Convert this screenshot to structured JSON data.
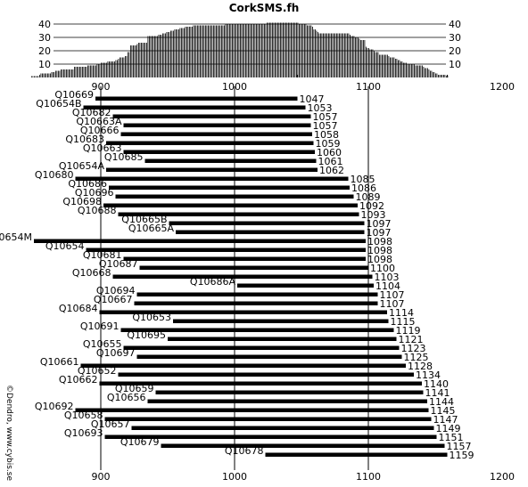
{
  "chart_data": {
    "type": "bar",
    "title": "CorkSMS.fh",
    "credit": "©Dendro, www.cybis.se",
    "x_axis": {
      "range": [
        850,
        1200
      ],
      "ticks": [
        900,
        1000,
        1100,
        1200
      ],
      "gridlines": [
        900,
        1000,
        1100
      ]
    },
    "coverage_histogram": {
      "y_ticks": [
        10,
        20,
        30,
        40
      ],
      "ylim": [
        0,
        42
      ],
      "start_year": 1047,
      "end_year": 1159,
      "segments": [
        {
          "from": 848,
          "to": 854,
          "value": 1
        },
        {
          "from": 854,
          "to": 855,
          "value": 2
        },
        {
          "from": 855,
          "to": 863,
          "value": 3
        },
        {
          "from": 863,
          "to": 866,
          "value": 4
        },
        {
          "from": 866,
          "to": 870,
          "value": 5
        },
        {
          "from": 870,
          "to": 880,
          "value": 6
        },
        {
          "from": 880,
          "to": 890,
          "value": 8
        },
        {
          "from": 890,
          "to": 897,
          "value": 9
        },
        {
          "from": 897,
          "to": 900,
          "value": 10
        },
        {
          "from": 900,
          "to": 905,
          "value": 11
        },
        {
          "from": 905,
          "to": 911,
          "value": 12
        },
        {
          "from": 911,
          "to": 913,
          "value": 13
        },
        {
          "from": 913,
          "to": 914,
          "value": 14
        },
        {
          "from": 914,
          "to": 918,
          "value": 15
        },
        {
          "from": 918,
          "to": 920,
          "value": 16
        },
        {
          "from": 920,
          "to": 922,
          "value": 19
        },
        {
          "from": 922,
          "to": 927,
          "value": 24
        },
        {
          "from": 927,
          "to": 928,
          "value": 25
        },
        {
          "from": 928,
          "to": 935,
          "value": 26
        },
        {
          "from": 935,
          "to": 943,
          "value": 31
        },
        {
          "from": 943,
          "to": 946,
          "value": 32
        },
        {
          "from": 946,
          "to": 949,
          "value": 33
        },
        {
          "from": 949,
          "to": 952,
          "value": 34
        },
        {
          "from": 952,
          "to": 955,
          "value": 35
        },
        {
          "from": 955,
          "to": 959,
          "value": 36
        },
        {
          "from": 959,
          "to": 963,
          "value": 37
        },
        {
          "from": 963,
          "to": 969,
          "value": 38
        },
        {
          "from": 969,
          "to": 993,
          "value": 39
        },
        {
          "from": 993,
          "to": 1024,
          "value": 40
        },
        {
          "from": 1024,
          "to": 1048,
          "value": 41
        },
        {
          "from": 1048,
          "to": 1054,
          "value": 40
        },
        {
          "from": 1054,
          "to": 1058,
          "value": 39
        },
        {
          "from": 1058,
          "to": 1059,
          "value": 38
        },
        {
          "from": 1059,
          "to": 1061,
          "value": 36
        },
        {
          "from": 1061,
          "to": 1062,
          "value": 35
        },
        {
          "from": 1062,
          "to": 1063,
          "value": 34
        },
        {
          "from": 1063,
          "to": 1086,
          "value": 33
        },
        {
          "from": 1086,
          "to": 1087,
          "value": 32
        },
        {
          "from": 1087,
          "to": 1090,
          "value": 31
        },
        {
          "from": 1090,
          "to": 1093,
          "value": 30
        },
        {
          "from": 1093,
          "to": 1094,
          "value": 29
        },
        {
          "from": 1094,
          "to": 1098,
          "value": 28
        },
        {
          "from": 1098,
          "to": 1099,
          "value": 23
        },
        {
          "from": 1099,
          "to": 1101,
          "value": 22
        },
        {
          "from": 1101,
          "to": 1104,
          "value": 21
        },
        {
          "from": 1104,
          "to": 1105,
          "value": 20
        },
        {
          "from": 1105,
          "to": 1108,
          "value": 19
        },
        {
          "from": 1108,
          "to": 1115,
          "value": 17
        },
        {
          "from": 1115,
          "to": 1116,
          "value": 16
        },
        {
          "from": 1116,
          "to": 1120,
          "value": 15
        },
        {
          "from": 1120,
          "to": 1122,
          "value": 14
        },
        {
          "from": 1122,
          "to": 1124,
          "value": 13
        },
        {
          "from": 1124,
          "to": 1126,
          "value": 12
        },
        {
          "from": 1126,
          "to": 1129,
          "value": 11
        },
        {
          "from": 1129,
          "to": 1135,
          "value": 10
        },
        {
          "from": 1135,
          "to": 1141,
          "value": 9
        },
        {
          "from": 1141,
          "to": 1142,
          "value": 8
        },
        {
          "from": 1142,
          "to": 1145,
          "value": 7
        },
        {
          "from": 1145,
          "to": 1146,
          "value": 6
        },
        {
          "from": 1146,
          "to": 1148,
          "value": 5
        },
        {
          "from": 1148,
          "to": 1150,
          "value": 4
        },
        {
          "from": 1150,
          "to": 1152,
          "value": 3
        },
        {
          "from": 1152,
          "to": 1158,
          "value": 2
        },
        {
          "from": 1158,
          "to": 1160,
          "value": 1
        }
      ]
    },
    "series": [
      {
        "name": "Q10669",
        "start": 896,
        "end": 1047
      },
      {
        "name": "Q10654B",
        "start": 887,
        "end": 1053
      },
      {
        "name": "Q10682",
        "start": 909,
        "end": 1057
      },
      {
        "name": "Q10663A",
        "start": 917,
        "end": 1057
      },
      {
        "name": "Q10666",
        "start": 915,
        "end": 1058
      },
      {
        "name": "Q10683",
        "start": 904,
        "end": 1059
      },
      {
        "name": "Q10663",
        "start": 917,
        "end": 1060
      },
      {
        "name": "Q10685",
        "start": 933,
        "end": 1061
      },
      {
        "name": "Q10654A",
        "start": 904,
        "end": 1062
      },
      {
        "name": "Q10680",
        "start": 881,
        "end": 1085
      },
      {
        "name": "Q10686",
        "start": 906,
        "end": 1086
      },
      {
        "name": "Q10696",
        "start": 911,
        "end": 1089
      },
      {
        "name": "Q10698",
        "start": 902,
        "end": 1092
      },
      {
        "name": "Q10688",
        "start": 913,
        "end": 1093
      },
      {
        "name": "Q10665B",
        "start": 951,
        "end": 1097
      },
      {
        "name": "Q10665A",
        "start": 956,
        "end": 1097
      },
      {
        "name": "Q10654M",
        "start": 850,
        "end": 1098
      },
      {
        "name": "Q10654",
        "start": 889,
        "end": 1098
      },
      {
        "name": "Q10681",
        "start": 917,
        "end": 1098
      },
      {
        "name": "Q10687",
        "start": 929,
        "end": 1100
      },
      {
        "name": "Q10668",
        "start": 909,
        "end": 1103
      },
      {
        "name": "Q10686A",
        "start": 1002,
        "end": 1104
      },
      {
        "name": "Q10694",
        "start": 927,
        "end": 1107
      },
      {
        "name": "Q10667",
        "start": 925,
        "end": 1107
      },
      {
        "name": "Q10684",
        "start": 899,
        "end": 1114
      },
      {
        "name": "Q10653",
        "start": 954,
        "end": 1115
      },
      {
        "name": "Q10691",
        "start": 915,
        "end": 1119
      },
      {
        "name": "Q10695",
        "start": 950,
        "end": 1121
      },
      {
        "name": "Q10655",
        "start": 917,
        "end": 1123
      },
      {
        "name": "Q10697",
        "start": 927,
        "end": 1125
      },
      {
        "name": "Q10661",
        "start": 885,
        "end": 1128
      },
      {
        "name": "Q10652",
        "start": 913,
        "end": 1134
      },
      {
        "name": "Q10662",
        "start": 899,
        "end": 1140
      },
      {
        "name": "Q10659",
        "start": 941,
        "end": 1141
      },
      {
        "name": "Q10656",
        "start": 935,
        "end": 1144
      },
      {
        "name": "Q10692",
        "start": 881,
        "end": 1145
      },
      {
        "name": "Q10658",
        "start": 903,
        "end": 1147
      },
      {
        "name": "Q10657",
        "start": 923,
        "end": 1149
      },
      {
        "name": "Q10693",
        "start": 903,
        "end": 1151
      },
      {
        "name": "Q10679",
        "start": 945,
        "end": 1157
      },
      {
        "name": "Q10678",
        "start": 1023,
        "end": 1159
      }
    ]
  }
}
